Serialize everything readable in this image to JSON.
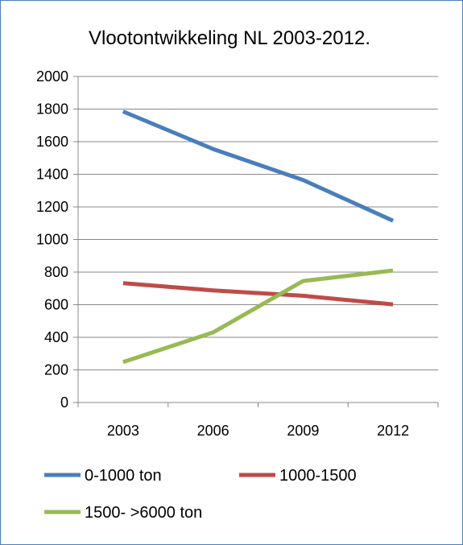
{
  "chart_data": {
    "type": "line",
    "title": "Vlootontwikkeling NL 2003-2012.",
    "categories": [
      "2003",
      "2006",
      "2009",
      "2012"
    ],
    "series": [
      {
        "name": "0-1000 ton",
        "values": [
          1785,
          1555,
          1365,
          1115
        ],
        "color": "#4a7ebb"
      },
      {
        "name": "1000-1500",
        "values": [
          732,
          688,
          655,
          602
        ],
        "color": "#be4b48"
      },
      {
        "name": "1500- >6000 ton",
        "values": [
          248,
          430,
          745,
          810
        ],
        "color": "#98b954"
      }
    ],
    "ylim": [
      0,
      2000
    ],
    "yticks": [
      0,
      200,
      400,
      600,
      800,
      1000,
      1200,
      1400,
      1600,
      1800,
      2000
    ],
    "grid": true,
    "legend": "bottom",
    "xlabel": "",
    "ylabel": ""
  }
}
